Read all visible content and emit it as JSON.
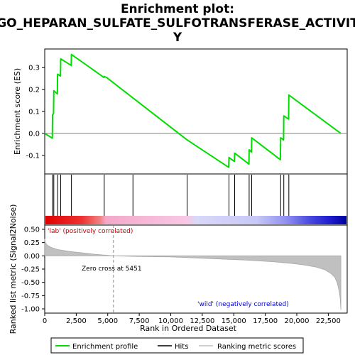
{
  "chart_data": {
    "type": "line",
    "title_lines": [
      "Enrichment plot:",
      "GO_HEPARAN_SULFATE_SULFOTRANSFERASE_ACTIVIT",
      "Y"
    ],
    "top_panel": {
      "ylabel": "Enrichment score (ES)",
      "ylim": [
        -0.185,
        0.385
      ],
      "yticks": [
        -0.1,
        0.0,
        0.1,
        0.2,
        0.3
      ],
      "ytick_labels": [
        "-0.1",
        "0.0",
        "0.1",
        "0.2",
        "0.3"
      ],
      "series": [
        {
          "name": "Enrichment profile",
          "color": "#00dd00",
          "x": [
            0,
            600,
            620,
            700,
            720,
            1000,
            1020,
            1250,
            1270,
            2100,
            2120,
            4700,
            4720,
            4900,
            11300,
            14600,
            14620,
            15050,
            15070,
            16200,
            16220,
            16400,
            16420,
            18700,
            18720,
            18950,
            18970,
            19350,
            19370,
            23500
          ],
          "y": [
            0.0,
            -0.022,
            0.085,
            0.09,
            0.195,
            0.18,
            0.27,
            0.262,
            0.34,
            0.31,
            0.36,
            0.255,
            0.26,
            0.255,
            -0.03,
            -0.155,
            -0.11,
            -0.128,
            -0.09,
            -0.14,
            -0.075,
            -0.085,
            -0.02,
            -0.12,
            -0.02,
            -0.03,
            0.08,
            0.065,
            0.175,
            0.0
          ]
        }
      ]
    },
    "hits": [
      620,
      720,
      1020,
      1270,
      2120,
      4720,
      7000,
      11300,
      14620,
      15070,
      16220,
      16420,
      18720,
      18970,
      19370
    ],
    "hits_label": "Hits",
    "bottom_panel": {
      "ylabel": "Ranked list metric (Signal2Noise)",
      "xlabel": "Rank in Ordered Dataset",
      "xlim": [
        0,
        24000
      ],
      "xticks": [
        0,
        2500,
        5000,
        7500,
        10000,
        12500,
        15000,
        17500,
        20000,
        22500
      ],
      "xtick_labels": [
        "0",
        "2,500",
        "5,000",
        "7,500",
        "10,000",
        "12,500",
        "15,000",
        "17,500",
        "20,000",
        "22,500"
      ],
      "ylim": [
        -1.08,
        0.58
      ],
      "yticks": [
        0.5,
        0.25,
        0.0,
        -0.25,
        -0.5,
        -0.75,
        -1.0
      ],
      "ytick_labels": [
        "0.50",
        "0.25",
        "0.00",
        "-0.25",
        "-0.50",
        "-0.75",
        "-1.00"
      ],
      "metric_profile": {
        "name": "Ranking metric scores",
        "color": "#c0c0c0",
        "x": [
          0,
          50,
          200,
          500,
          1000,
          2000,
          3000,
          4000,
          5000,
          5451,
          7000,
          10000,
          12000,
          14000,
          16000,
          18000,
          19500,
          20500,
          21500,
          22200,
          22700,
          23000,
          23200,
          23350,
          23450,
          23500
        ],
        "y": [
          0.32,
          0.25,
          0.2,
          0.16,
          0.12,
          0.08,
          0.055,
          0.03,
          0.01,
          0.0,
          -0.01,
          -0.02,
          -0.04,
          -0.06,
          -0.08,
          -0.11,
          -0.14,
          -0.17,
          -0.21,
          -0.26,
          -0.33,
          -0.4,
          -0.5,
          -0.65,
          -0.8,
          -1.02
        ]
      },
      "zero_cross_label": "Zero cross at 5451",
      "zero_cross_x": 5451,
      "pos_label": "'lab' (positively correlated)",
      "neg_label": "'wild' (negatively correlated)",
      "pos_color": "#cc0000",
      "neg_color": "#0000cc"
    },
    "legend": {
      "placement": "bottom",
      "entries": [
        {
          "label": "Enrichment profile",
          "color": "#00dd00"
        },
        {
          "label": "Hits",
          "color": "#000000"
        },
        {
          "label": "Ranking metric scores",
          "color": "#c0c0c0"
        }
      ]
    }
  }
}
